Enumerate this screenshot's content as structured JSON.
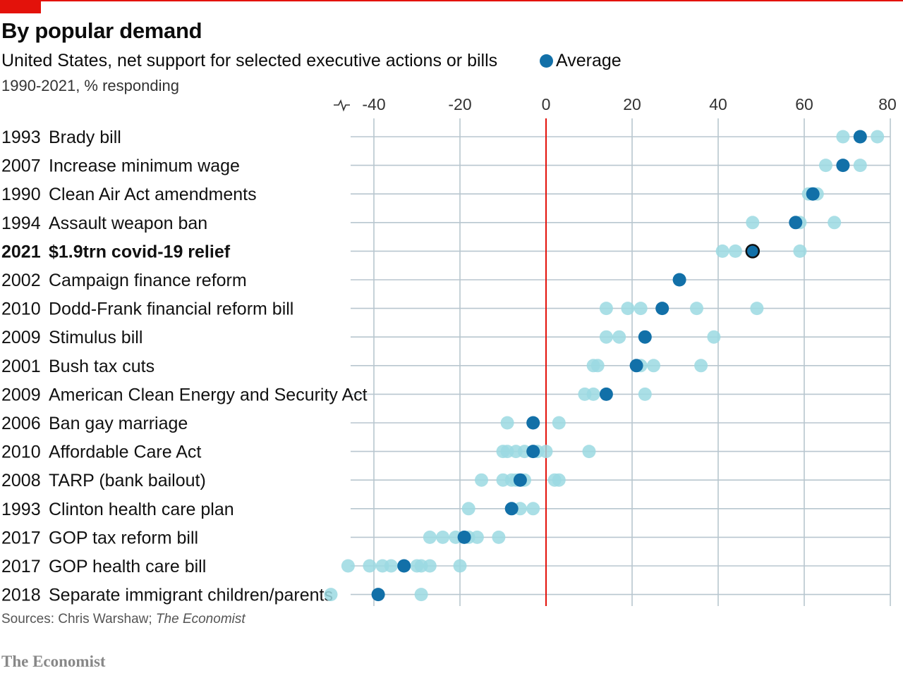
{
  "header": {
    "title": "By popular demand",
    "subtitle": "United States, net support for selected executive actions or bills",
    "units": "1990-2021, % responding",
    "legend_label": "Average"
  },
  "footer": {
    "source_prefix": "Sources: Chris Warshaw; ",
    "source_publication": "The Economist",
    "brand": "The Economist"
  },
  "colors": {
    "accent_red": "#e3120b",
    "average": "#1270a8",
    "poll": "#9bd9e2",
    "grid": "#b8c6cf"
  },
  "chart_data": {
    "type": "scatter",
    "title": "By popular demand",
    "subtitle": "United States, net support for selected executive actions or bills",
    "xlim": [
      -40,
      80
    ],
    "x_ticks": [
      "-40",
      "-20",
      "0",
      "20",
      "40",
      "60",
      "80"
    ],
    "x_tick_values": [
      -40,
      -20,
      0,
      20,
      40,
      60,
      80
    ],
    "axis_break": true,
    "grid": true,
    "legend": "top",
    "reference_line": 0,
    "rows": [
      {
        "year": "1993",
        "label": "Brady bill",
        "highlight": false,
        "average": 73,
        "polls": [
          69,
          73,
          77
        ]
      },
      {
        "year": "2007",
        "label": "Increase minimum wage",
        "highlight": false,
        "average": 69,
        "polls": [
          65,
          73
        ]
      },
      {
        "year": "1990",
        "label": "Clean Air Act amendments",
        "highlight": false,
        "average": 62,
        "polls": [
          61,
          63
        ]
      },
      {
        "year": "1994",
        "label": "Assault weapon ban",
        "highlight": false,
        "average": 58,
        "polls": [
          48,
          59,
          67
        ]
      },
      {
        "year": "2021",
        "label": "$1.9trn covid-19 relief",
        "highlight": true,
        "average": 48,
        "polls": [
          41,
          44,
          59
        ]
      },
      {
        "year": "2002",
        "label": "Campaign finance reform",
        "highlight": false,
        "average": 31,
        "polls": [
          31
        ]
      },
      {
        "year": "2010",
        "label": "Dodd-Frank financial reform bill",
        "highlight": false,
        "average": 27,
        "polls": [
          14,
          19,
          22,
          35,
          49
        ]
      },
      {
        "year": "2009",
        "label": "Stimulus bill",
        "highlight": false,
        "average": 23,
        "polls": [
          14,
          17,
          39
        ]
      },
      {
        "year": "2001",
        "label": "Bush tax cuts",
        "highlight": false,
        "average": 21,
        "polls": [
          11,
          12,
          22,
          25,
          36
        ]
      },
      {
        "year": "2009",
        "label": "American Clean Energy and Security Act",
        "highlight": false,
        "average": 14,
        "polls": [
          9,
          11,
          23
        ]
      },
      {
        "year": "2006",
        "label": "Ban gay marriage",
        "highlight": false,
        "average": -3,
        "polls": [
          -9,
          3
        ]
      },
      {
        "year": "2010",
        "label": "Affordable Care Act",
        "highlight": false,
        "average": -3,
        "polls": [
          -10,
          -9,
          -7,
          -5,
          -2,
          0,
          10
        ]
      },
      {
        "year": "2008",
        "label": "TARP (bank bailout)",
        "highlight": false,
        "average": -6,
        "polls": [
          -15,
          -10,
          -8,
          -7,
          -5,
          2,
          3
        ]
      },
      {
        "year": "1993",
        "label": "Clinton health care plan",
        "highlight": false,
        "average": -8,
        "polls": [
          -18,
          -6,
          -3
        ]
      },
      {
        "year": "2017",
        "label": "GOP tax reform bill",
        "highlight": false,
        "average": -19,
        "polls": [
          -27,
          -24,
          -21,
          -18,
          -16,
          -11
        ]
      },
      {
        "year": "2017",
        "label": "GOP health care bill",
        "highlight": false,
        "average": -33,
        "polls": [
          -46,
          -41,
          -38,
          -36,
          -30,
          -29,
          -27,
          -20
        ]
      },
      {
        "year": "2018",
        "label": "Separate immigrant children/parents",
        "highlight": false,
        "average": -39,
        "polls": [
          -50,
          -29
        ]
      }
    ]
  }
}
